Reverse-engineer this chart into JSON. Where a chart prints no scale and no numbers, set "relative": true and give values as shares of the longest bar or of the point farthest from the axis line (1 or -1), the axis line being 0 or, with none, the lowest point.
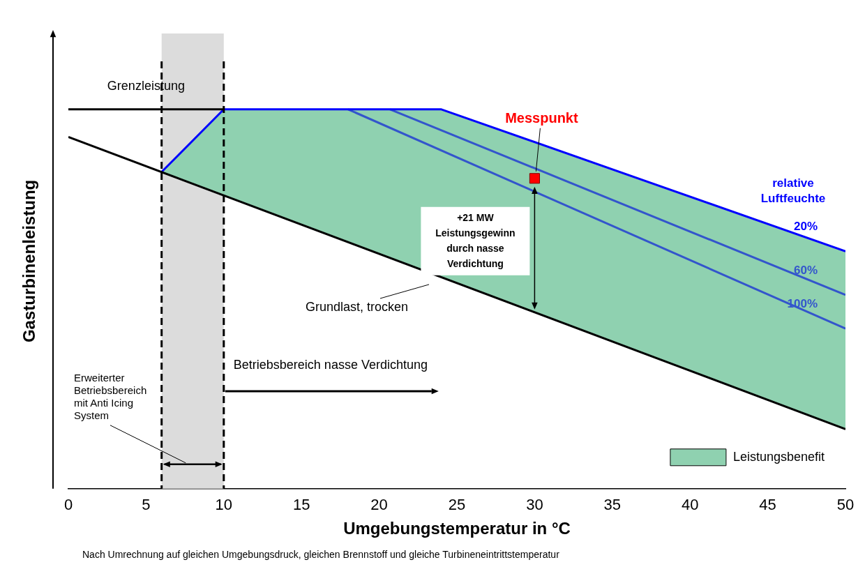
{
  "chart_data": {
    "type": "line",
    "relative": true,
    "xlabel": "Umgebungstemperatur in °C",
    "ylabel": "Gasturbinenleistung",
    "xlim": [
      0,
      50
    ],
    "xticks": [
      0,
      5,
      10,
      15,
      20,
      25,
      30,
      35,
      40,
      45,
      50
    ],
    "marker": "none",
    "legend": "bottom right",
    "series": [
      {
        "name": "Leistungsbenefit",
        "type": "area",
        "color": "#8fd1b0",
        "x": [
          6,
          10,
          24,
          50
        ],
        "values": [
          0.835,
          1,
          1,
          0.626
        ]
      },
      {
        "name": "Grundlast, trocken",
        "color": "#000000",
        "x": [
          0,
          50
        ],
        "values": [
          0.927,
          0.157
        ]
      },
      {
        "name": "Grenzleistung",
        "color": "#000000",
        "x": [
          0,
          10
        ],
        "values": [
          1,
          1
        ]
      },
      {
        "name": "20%",
        "color": "#0000ff",
        "x": [
          6,
          10,
          24,
          50
        ],
        "values": [
          0.835,
          1,
          1,
          0.626
        ]
      },
      {
        "name": "60%",
        "color": "#3355cc",
        "x": [
          20.7,
          50
        ],
        "values": [
          1,
          0.511
        ]
      },
      {
        "name": "100%",
        "color": "#3355cc",
        "x": [
          18,
          50
        ],
        "values": [
          1,
          0.422
        ]
      },
      {
        "name": "Messpunkt",
        "type": "scatter",
        "marker": "square",
        "color": "#ff0000",
        "x": [
          30
        ],
        "values": [
          0.818
        ]
      }
    ],
    "bands": [
      {
        "axis": "x",
        "from": 6,
        "to": 10,
        "color": "#dcdcdc",
        "label": "Erweiterter Betriebsbereich mit Anti Icing System"
      }
    ],
    "ref_lines": [
      {
        "axis": "x",
        "value": 6,
        "line_style": "dashed",
        "color": "#000000"
      },
      {
        "axis": "x",
        "value": 10,
        "line_style": "dashed",
        "color": "#000000"
      }
    ],
    "annotations": [
      "relative Luftfeuchte",
      "+21 MW Leistungsgewinn durch nasse Verdichtung",
      {
        "text": "Betriebsbereich nasse Verdichtung",
        "x": 10,
        "y": 0.257
      },
      "Nach Umrechnung auf gleichen Umgebungsdruck, gleichen Brennstoff und gleiche Turbineneintrittstemperatur"
    ]
  }
}
